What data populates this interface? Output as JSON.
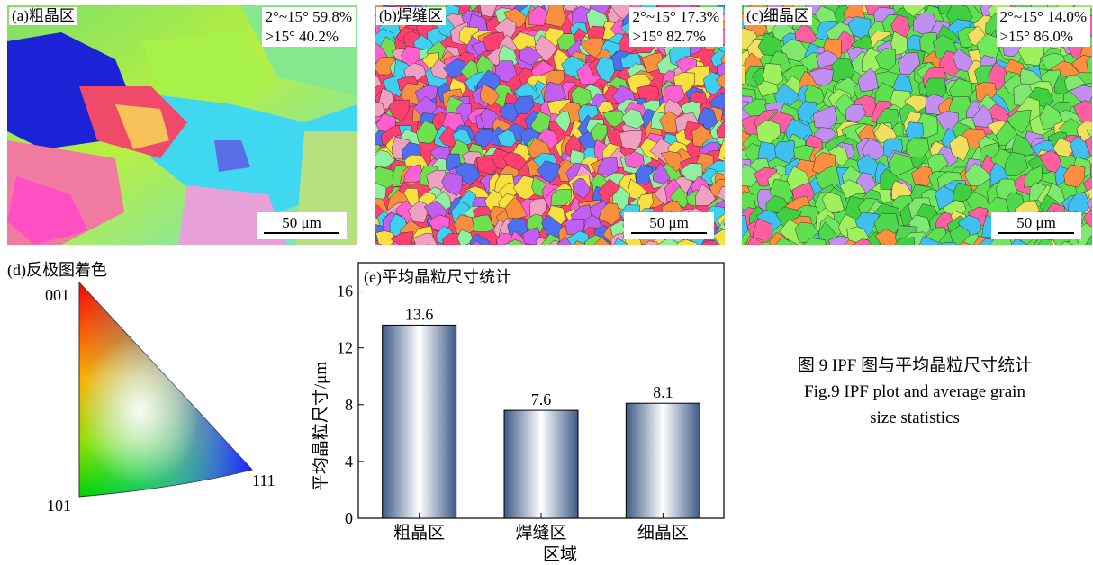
{
  "panels": [
    {
      "tag": "(a)粗晶区",
      "stat1": "2°~15° 59.8%",
      "stat2": ">15° 40.2%",
      "scale": "50 μm"
    },
    {
      "tag": "(b)焊缝区",
      "stat1": "2°~15° 17.3%",
      "stat2": ">15° 82.7%",
      "scale": "50 μm"
    },
    {
      "tag": "(c)细晶区",
      "stat1": "2°~15° 14.0%",
      "stat2": ">15° 86.0%",
      "scale": "50 μm"
    }
  ],
  "ipf": {
    "title": "(d)反极图着色",
    "corner_001": "001",
    "corner_101": "101",
    "corner_111": "111",
    "colors": {
      "001": "#ff0000",
      "101": "#00e000",
      "111": "#2020ff"
    }
  },
  "chart_data": {
    "type": "bar",
    "title": "(e)平均晶粒尺寸统计",
    "categories": [
      "粗晶区",
      "焊缝区",
      "细晶区"
    ],
    "values": [
      13.6,
      7.6,
      8.1
    ],
    "data_labels": [
      "13.6",
      "7.6",
      "8.1"
    ],
    "xlabel": "区域",
    "ylabel": "平均晶粒尺寸/μm",
    "ylim": [
      0,
      18
    ],
    "yticks": [
      0,
      4,
      8,
      12,
      16
    ],
    "grid": false,
    "bar_color": "#3d5a86"
  },
  "caption": {
    "line1": "图 9  IPF 图与平均晶粒尺寸统计",
    "line2": "Fig.9  IPF plot and average grain",
    "line3": "size statistics"
  }
}
